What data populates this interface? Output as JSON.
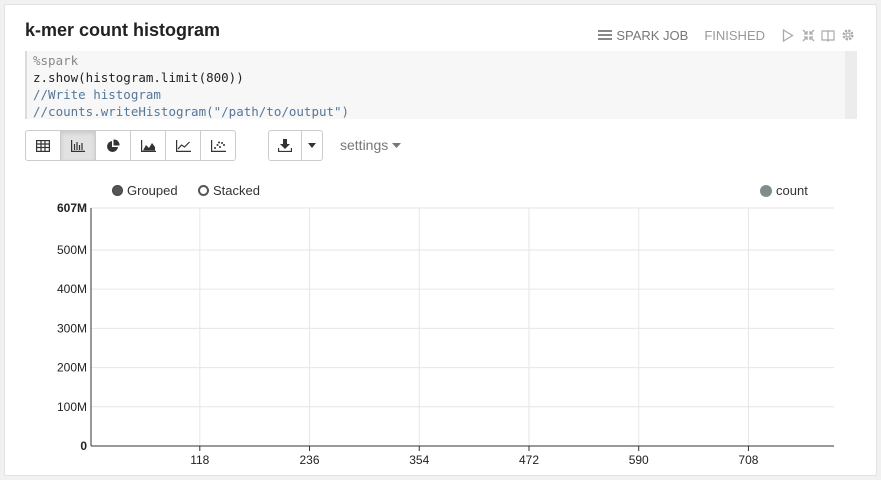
{
  "paragraph": {
    "title": "k-mer count histogram",
    "job_label": "SPARK JOB",
    "status": "FINISHED"
  },
  "editor": {
    "lines": [
      "%spark",
      "z.show(histogram.limit(800))",
      "//Write histogram",
      "//counts.writeHistogram(\"/path/to/output\")"
    ]
  },
  "toolbar": {
    "views": [
      "table",
      "bar-chart",
      "pie-chart",
      "area-chart",
      "line-chart",
      "scatter-chart"
    ],
    "active_view": "bar-chart",
    "settings_label": "settings"
  },
  "legend": {
    "grouped_label": "Grouped",
    "stacked_label": "Stacked",
    "series_label": "count",
    "series_color": "#7f8c8d"
  },
  "chart_data": {
    "type": "bar",
    "series": [
      {
        "name": "count",
        "color": "#7f8c8d"
      }
    ],
    "y_ticks": [
      "0",
      "100M",
      "200M",
      "300M",
      "400M",
      "500M",
      "607M"
    ],
    "y_tick_values": [
      0,
      100000000,
      200000000,
      300000000,
      400000000,
      500000000,
      607000000
    ],
    "ylim": [
      0,
      607000000
    ],
    "x_ticks": [
      "118",
      "236",
      "354",
      "472",
      "590",
      "708"
    ],
    "x_tick_values": [
      118,
      236,
      354,
      472,
      590,
      708
    ],
    "xlim": [
      1,
      800
    ],
    "grid": true
  }
}
